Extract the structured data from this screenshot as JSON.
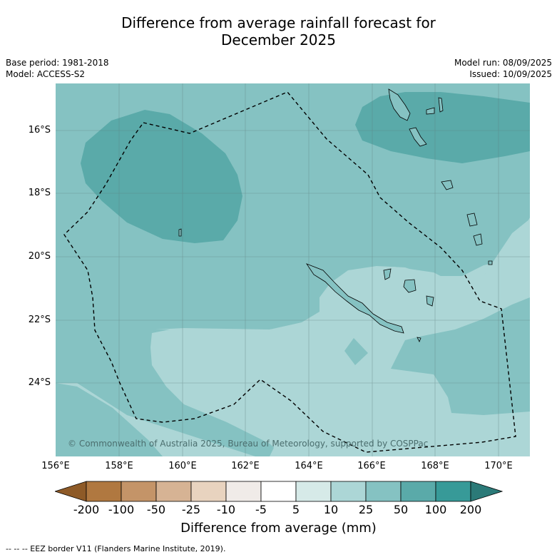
{
  "title_line1": "Difference from average rainfall forecast for",
  "title_line2": "December 2025",
  "base_period": "Base period: 1981-2018",
  "model": "Model: ACCESS-S2",
  "model_run": "Model run: 08/09/2025",
  "issued": "Issued: 10/09/2025",
  "lat_labels": [
    "16°S",
    "18°S",
    "20°S",
    "22°S",
    "24°S"
  ],
  "lon_labels": [
    "156°E",
    "158°E",
    "160°E",
    "162°E",
    "164°E",
    "166°E",
    "168°E",
    "170°E"
  ],
  "copyright": "© Commonwealth of Australia 2025, Bureau of Meteorology, supported by COSPPac",
  "colorbar": {
    "ticks": [
      "-200",
      "-100",
      "-50",
      "-25",
      "-10",
      "-5",
      "5",
      "10",
      "25",
      "50",
      "100",
      "200"
    ],
    "colors": [
      "#8e5a27",
      "#b07840",
      "#c49468",
      "#d6b394",
      "#e8d3bf",
      "#f0ebe8",
      "#ffffff",
      "#d6eae8",
      "#acd6d6",
      "#85c2c2",
      "#5aaaa9",
      "#379a98",
      "#2b7a78"
    ],
    "label": "Difference from average (mm)"
  },
  "legend_text": "--  --  -- EEZ border V11 (Flanders Marine Institute, 2019)."
}
